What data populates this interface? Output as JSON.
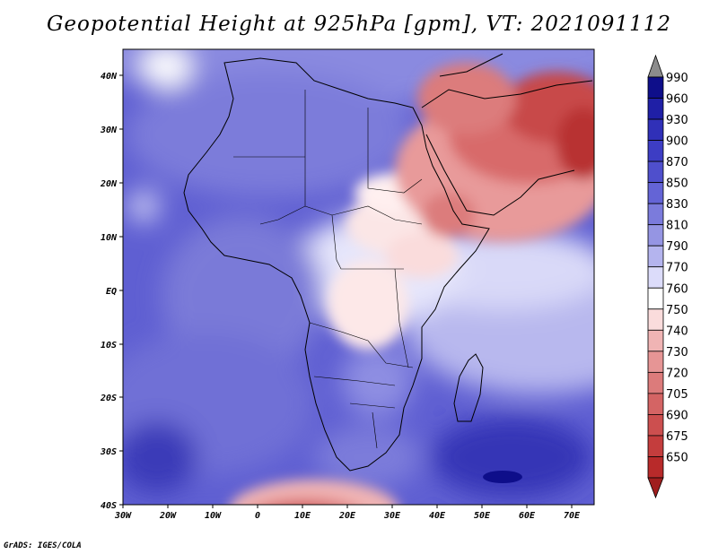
{
  "title": "Geopotential Height at 925hPa [gpm], VT: 2021091112",
  "credit": "GrADS: IGES/COLA",
  "lon_labels": [
    "30W",
    "20W",
    "10W",
    "0",
    "10E",
    "20E",
    "30E",
    "40E",
    "50E",
    "60E",
    "70E"
  ],
  "lat_labels": [
    "40N",
    "30N",
    "20N",
    "10N",
    "EQ",
    "10S",
    "20S",
    "30S",
    "40S"
  ],
  "colorbar": {
    "labels": [
      "990",
      "960",
      "930",
      "900",
      "870",
      "850",
      "830",
      "810",
      "790",
      "770",
      "760",
      "750",
      "740",
      "730",
      "720",
      "705",
      "690",
      "675",
      "650"
    ],
    "colors": [
      "#8c8c8c",
      "#0e0e8a",
      "#1f1fa6",
      "#3030b8",
      "#3d3dc4",
      "#4f4fcc",
      "#6464d6",
      "#7b7bdc",
      "#9595e3",
      "#b4b4ee",
      "#dcdcfa",
      "#ffffff",
      "#fadcdc",
      "#f0b4b4",
      "#e69595",
      "#dc7b7b",
      "#d46464",
      "#cc4f4f",
      "#c43d3d",
      "#b82a2a",
      "#a01e1e"
    ]
  }
}
